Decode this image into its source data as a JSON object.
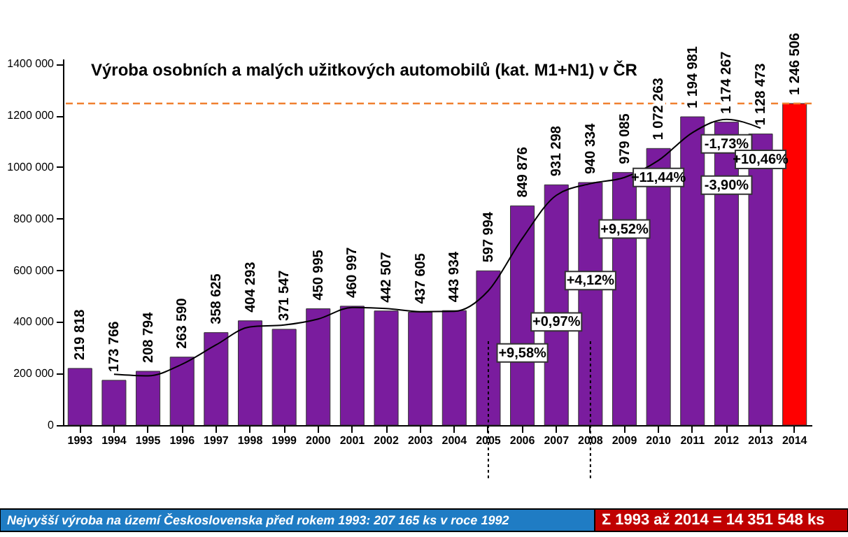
{
  "chart_data": {
    "type": "bar",
    "title": "Výroba osobních a malých užitkových automobilů  (kat. M1+N1) v ČR",
    "categories": [
      "1993",
      "1994",
      "1995",
      "1996",
      "1997",
      "1998",
      "1999",
      "2000",
      "2001",
      "2002",
      "2003",
      "2004",
      "2005",
      "2006",
      "2007",
      "2008",
      "2009",
      "2010",
      "2011",
      "2012",
      "2013",
      "2014"
    ],
    "series": [
      {
        "colors": [
          "#7a1c9e",
          "#7a1c9e",
          "#7a1c9e",
          "#7a1c9e",
          "#7a1c9e",
          "#7a1c9e",
          "#7a1c9e",
          "#7a1c9e",
          "#7a1c9e",
          "#7a1c9e",
          "#7a1c9e",
          "#7a1c9e",
          "#7a1c9e",
          "#7a1c9e",
          "#7a1c9e",
          "#7a1c9e",
          "#7a1c9e",
          "#7a1c9e",
          "#7a1c9e",
          "#7a1c9e",
          "#7a1c9e",
          "#ff0000"
        ],
        "values": [
          219818,
          173766,
          208794,
          263590,
          358625,
          404293,
          371547,
          450995,
          460997,
          442507,
          437605,
          443934,
          597994,
          849876,
          931298,
          940334,
          979085,
          1072263,
          1194981,
          1174267,
          1128473,
          1246506
        ],
        "value_labels": [
          "219 818",
          "173 766",
          "208 794",
          "263 590",
          "358 625",
          "404 293",
          "371 547",
          "450 995",
          "460 997",
          "442 507",
          "437 605",
          "443 934",
          "597 994",
          "849 876",
          "931 298",
          "940 334",
          "979 085",
          "1 072 263",
          "1 194 981",
          "1 174 267",
          "1 128 473",
          "1 246 506"
        ]
      },
      {
        "type": "line",
        "color": "#000000",
        "values": [
          null,
          197000,
          191000,
          236000,
          311000,
          381000,
          388000,
          411000,
          456000,
          452000,
          440000,
          441000,
          521000,
          724000,
          891000,
          936000,
          960000,
          1026000,
          1134000,
          1185000,
          1151000,
          null
        ]
      }
    ],
    "ylim": [
      0,
      1420000
    ],
    "yticks": [
      {
        "value": 0,
        "label": "0"
      },
      {
        "value": 200000,
        "label": "200 000"
      },
      {
        "value": 400000,
        "label": "400 000"
      },
      {
        "value": 600000,
        "label": "600 000"
      },
      {
        "value": 800000,
        "label": "800 000"
      },
      {
        "value": 1000000,
        "label": "1000 000"
      },
      {
        "value": 1200000,
        "label": "1200 000"
      },
      {
        "value": 1400000,
        "label": "1400 000"
      }
    ],
    "ref_lines": [
      {
        "axis": "y",
        "value": 1246506,
        "color": "#f08030",
        "line_style": "dashed"
      },
      {
        "axis": "x",
        "value": "2005",
        "color": "#000000",
        "line_style": "dotted"
      },
      {
        "axis": "x",
        "value": "2008",
        "color": "#000000",
        "line_style": "dotted"
      }
    ],
    "annotations": [
      "Nejvyšší výroba na území Československa před rokem 1993:     207 165  ks v roce 1992",
      "Σ 1993 až 2014 =      14 351 548      ks",
      {
        "text": "+9,58%",
        "x": "2006",
        "y": 280000
      },
      {
        "text": "+0,97%",
        "x": "2007",
        "y": 400000
      },
      {
        "text": "+4,12%",
        "x": "2008",
        "y": 560000
      },
      {
        "text": "+9,52%",
        "x": "2009",
        "y": 760000
      },
      {
        "text": "+11,44%",
        "x": "2010",
        "y": 960000
      },
      {
        "text": "-1,73%",
        "x": "2012",
        "y": 1090000
      },
      {
        "text": "-3,90%",
        "x": "2012",
        "y": 930000
      },
      {
        "text": "+10,46%",
        "x": "2013",
        "y": 1030000
      }
    ],
    "grid": false,
    "legend": false
  }
}
